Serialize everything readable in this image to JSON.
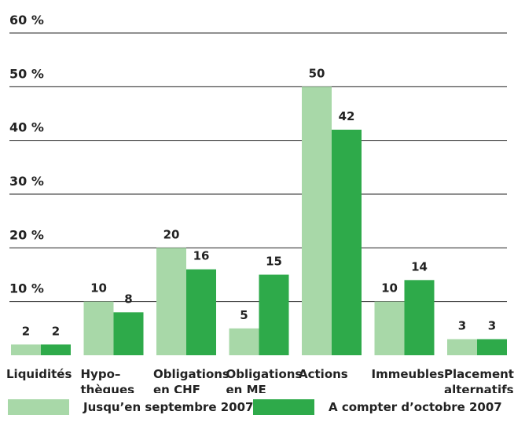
{
  "chart_data": {
    "type": "bar",
    "categories": [
      [
        "Liquidités"
      ],
      [
        "Hypo–",
        "thèques"
      ],
      [
        "Obligations",
        "en CHF"
      ],
      [
        "Obligations",
        "en ME"
      ],
      [
        "Actions"
      ],
      [
        "Immeubles"
      ],
      [
        "Placements",
        "alternatifs"
      ]
    ],
    "series": [
      {
        "name": "Jusqu’en septembre 2007",
        "color": "#a8d8a8",
        "values": [
          2,
          10,
          20,
          5,
          50,
          10,
          3
        ]
      },
      {
        "name": "A compter d’octobre 2007",
        "color": "#2eaa4a",
        "values": [
          2,
          8,
          16,
          15,
          42,
          14,
          3
        ]
      }
    ],
    "ylim": [
      0,
      60
    ],
    "yticks": [
      "60 %",
      "50 %",
      "40 %",
      "30 %",
      "20 %",
      "10 %"
    ],
    "grid": true,
    "legend_position": "bottom"
  }
}
